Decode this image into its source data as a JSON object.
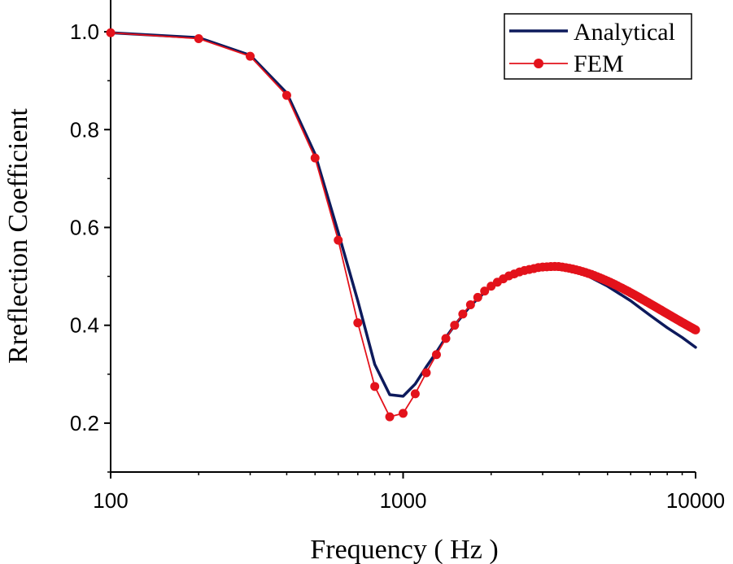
{
  "chart_data": {
    "type": "line",
    "xlabel": "Frequency ( Hz )",
    "ylabel": "Rreflection Coefficient",
    "xscale": "log",
    "xlim": [
      100,
      10000
    ],
    "ylim": [
      0.1,
      1.045
    ],
    "xticks": [
      100,
      1000,
      10000
    ],
    "xtick_labels": [
      "100",
      "1000",
      "10000"
    ],
    "yticks": [
      0.2,
      0.4,
      0.6,
      0.8,
      1.0
    ],
    "ytick_labels": [
      "0.2",
      "0.4",
      "0.6",
      "0.8",
      "1.0"
    ],
    "legend_position": "top-right",
    "series": [
      {
        "name": "Analytical",
        "color": "#0d1a5c",
        "marker": "none",
        "x": [
          100,
          200,
          300,
          400,
          500,
          600,
          700,
          800,
          900,
          1000,
          1100,
          1200,
          1300,
          1400,
          1500,
          1700,
          2000,
          2500,
          3000,
          3200,
          3500,
          4000,
          5000,
          6000,
          7000,
          8000,
          9000,
          10000
        ],
        "values": [
          0.998,
          0.988,
          0.952,
          0.875,
          0.75,
          0.59,
          0.45,
          0.32,
          0.258,
          0.255,
          0.28,
          0.315,
          0.345,
          0.375,
          0.4,
          0.44,
          0.48,
          0.51,
          0.52,
          0.521,
          0.519,
          0.51,
          0.48,
          0.45,
          0.42,
          0.395,
          0.375,
          0.355
        ]
      },
      {
        "name": "FEM",
        "color": "#e3121b",
        "marker": "circle",
        "x": [
          100,
          200,
          300,
          400,
          500,
          600,
          700,
          800,
          900,
          1000,
          1100,
          1200,
          1300,
          1400,
          1500,
          1600,
          1700,
          1800,
          1900,
          2000,
          2100,
          2200,
          2300,
          2400,
          2500,
          2600,
          2700,
          2800,
          2900,
          3000,
          3100,
          3200,
          3300,
          3400,
          3500,
          3600,
          3700,
          3800,
          3900,
          4000,
          4100,
          4200,
          4300,
          4400,
          4500,
          4600,
          4700,
          4800,
          4900,
          5000,
          5100,
          5200,
          5300,
          5400,
          5500,
          5600,
          5700,
          5800,
          5900,
          6000,
          6100,
          6200,
          6300,
          6400,
          6500,
          6600,
          6700,
          6800,
          6900,
          7000,
          7100,
          7200,
          7300,
          7400,
          7500,
          7600,
          7700,
          7800,
          7900,
          8000,
          8100,
          8200,
          8300,
          8400,
          8500,
          8600,
          8700,
          8800,
          8900,
          9000,
          9100,
          9200,
          9300,
          9400,
          9500,
          9600,
          9700,
          9800,
          9900,
          10000
        ],
        "values": [
          0.998,
          0.986,
          0.95,
          0.87,
          0.742,
          0.574,
          0.405,
          0.275,
          0.213,
          0.22,
          0.26,
          0.303,
          0.34,
          0.373,
          0.4,
          0.423,
          0.442,
          0.457,
          0.47,
          0.48,
          0.488,
          0.495,
          0.501,
          0.505,
          0.509,
          0.512,
          0.514,
          0.516,
          0.518,
          0.519,
          0.5195,
          0.52,
          0.5202,
          0.52,
          0.519,
          0.5178,
          0.5165,
          0.515,
          0.5135,
          0.5118,
          0.51,
          0.508,
          0.506,
          0.504,
          0.5018,
          0.4996,
          0.4973,
          0.495,
          0.4927,
          0.4903,
          0.488,
          0.4856,
          0.4832,
          0.4808,
          0.4784,
          0.476,
          0.4736,
          0.4712,
          0.4689,
          0.4665,
          0.4641,
          0.4618,
          0.4595,
          0.4572,
          0.4549,
          0.4526,
          0.4504,
          0.4482,
          0.446,
          0.4438,
          0.4417,
          0.4396,
          0.4375,
          0.4354,
          0.4334,
          0.4314,
          0.4294,
          0.4274,
          0.4255,
          0.4236,
          0.4217,
          0.4198,
          0.418,
          0.4162,
          0.4144,
          0.4126,
          0.4109,
          0.4092,
          0.4075,
          0.4058,
          0.4042,
          0.4026,
          0.401,
          0.3994,
          0.3979,
          0.3964,
          0.3949,
          0.3934,
          0.3919,
          0.3905
        ]
      }
    ]
  }
}
